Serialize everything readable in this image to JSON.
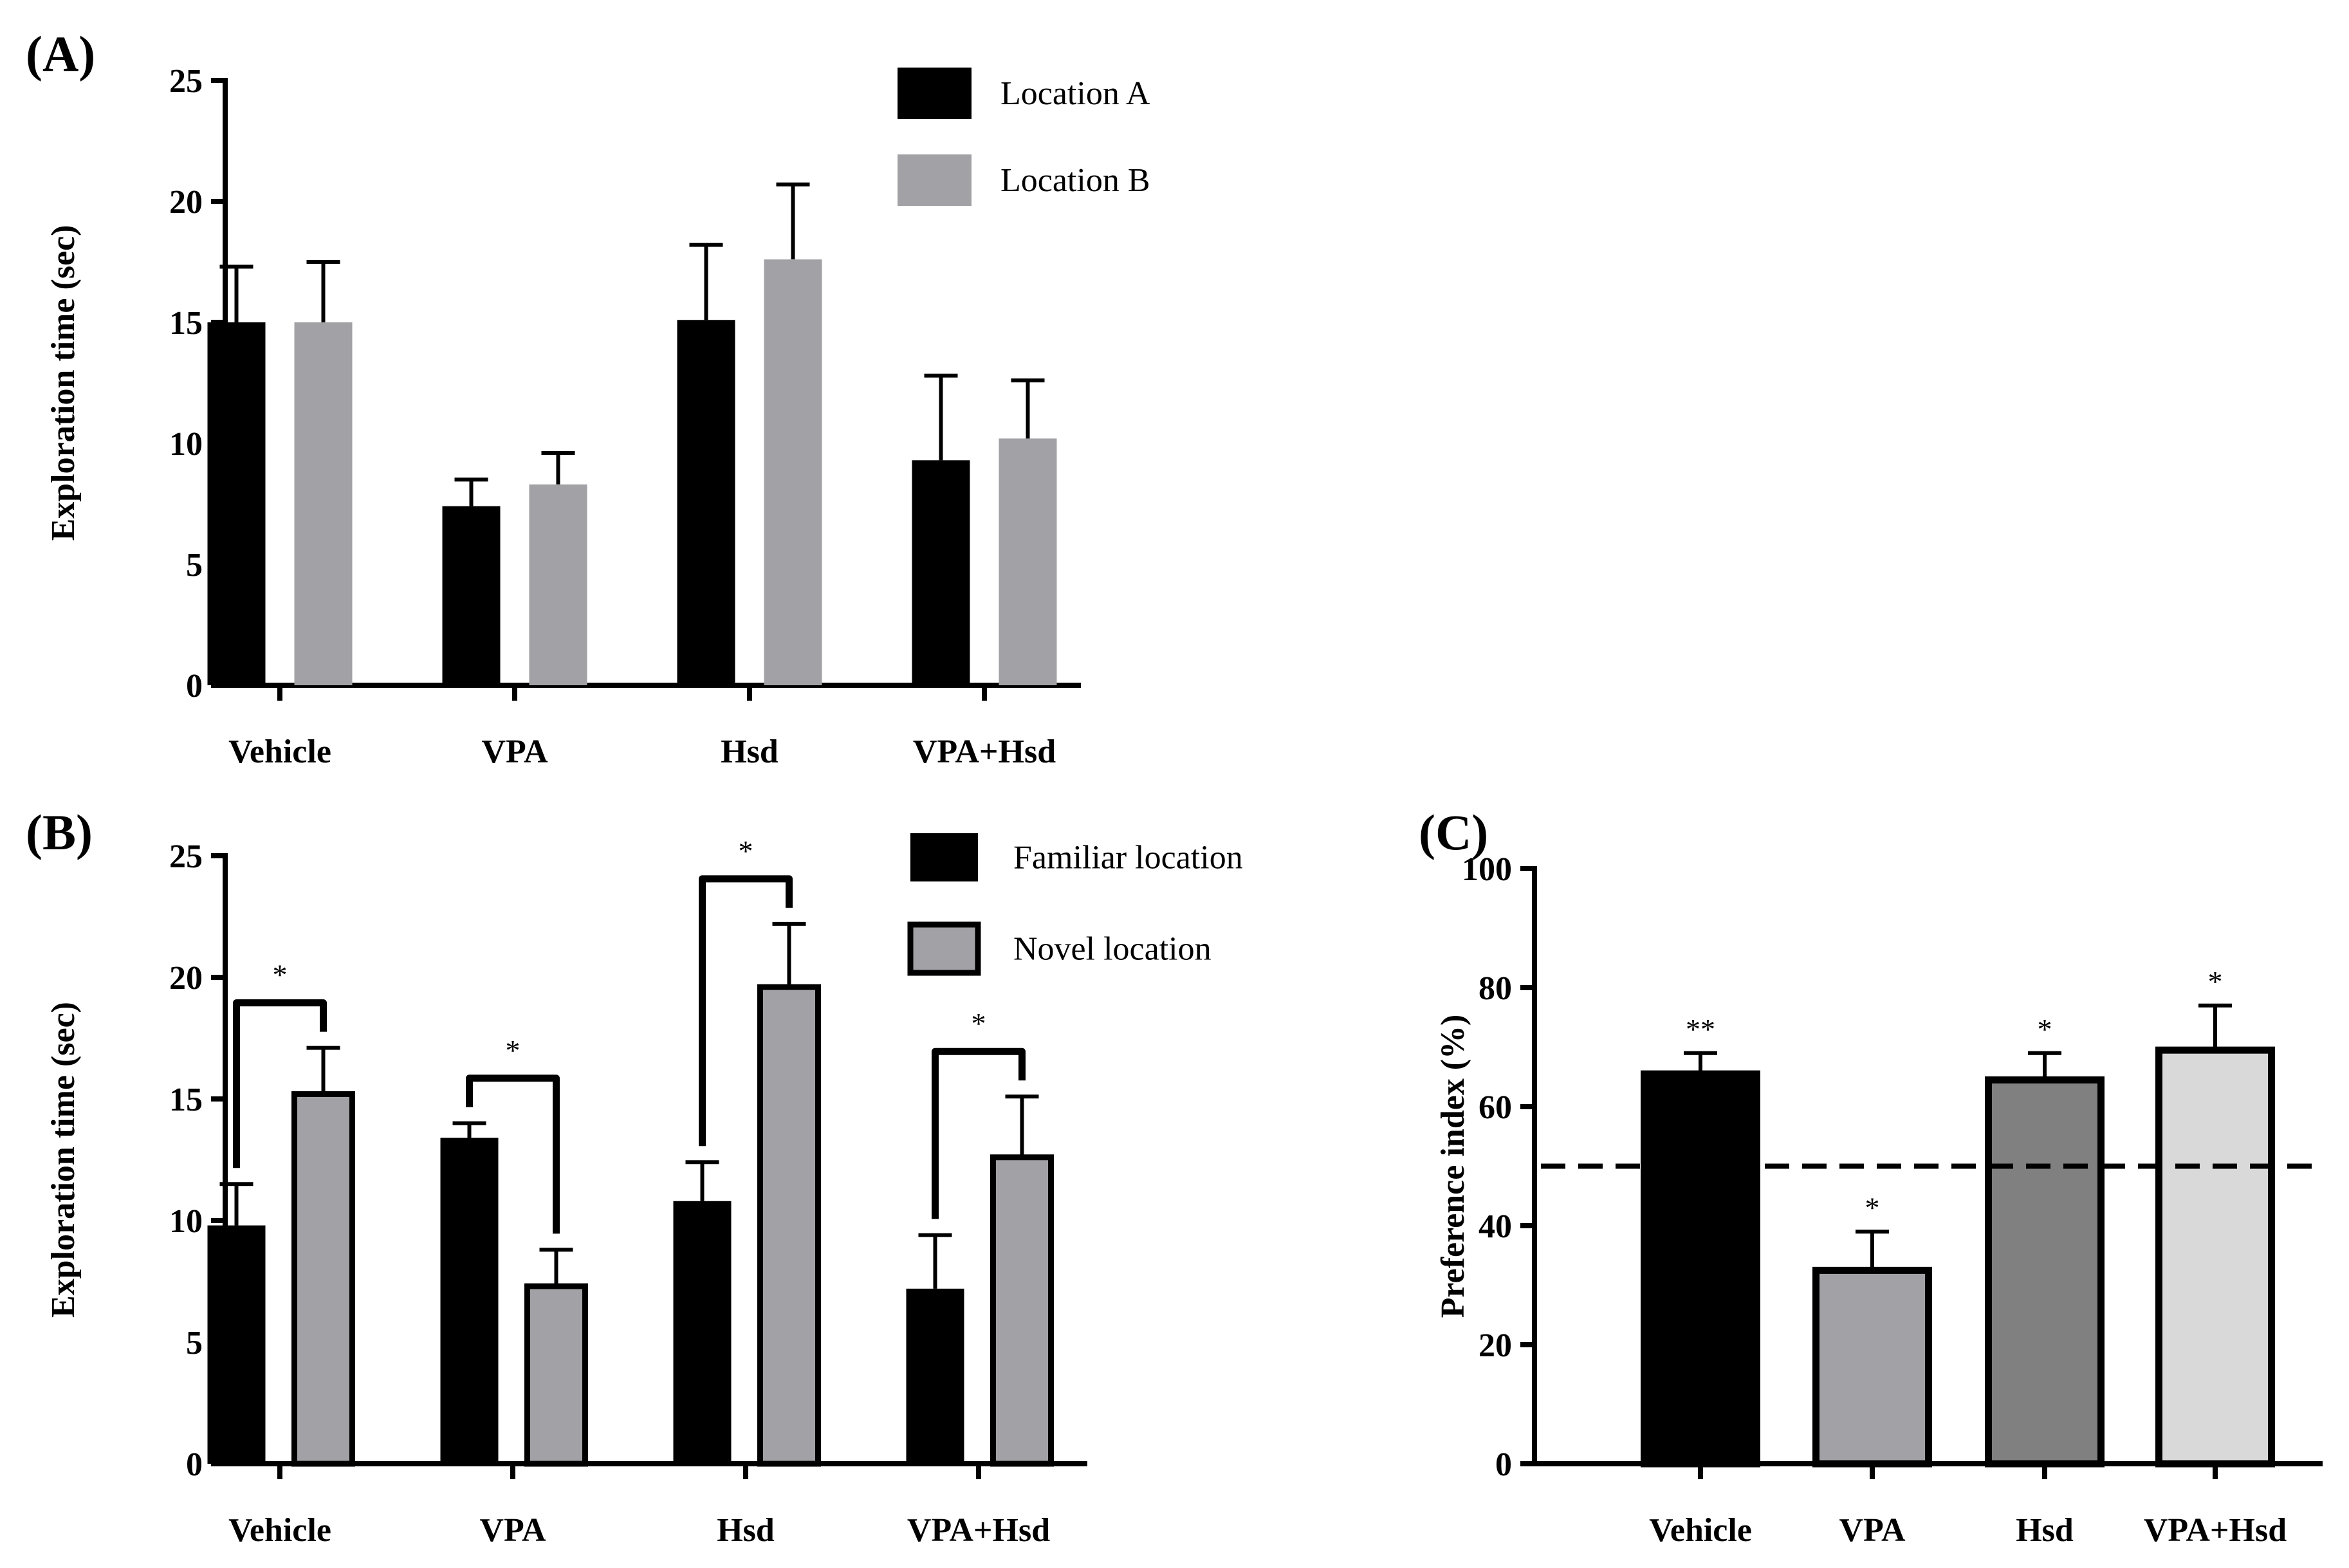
{
  "colors": {
    "black": "#000000",
    "gray": "#a2a2a6",
    "dark_gray": "#808080",
    "light_gray": "#d9d9d9"
  },
  "chart_data": [
    {
      "id": "A",
      "panel_label": "(A)",
      "type": "bar",
      "ylabel": "Exploration time (sec)",
      "ylim": [
        0,
        25
      ],
      "yticks": [
        "0",
        "5",
        "10",
        "15",
        "20",
        "25"
      ],
      "categories": [
        "Vehicle",
        "VPA",
        "Hsd",
        "VPA+Hsd"
      ],
      "series": [
        {
          "name": "Location A",
          "color": "#000000",
          "values": [
            15.0,
            7.4,
            15.1,
            9.3
          ],
          "errors": [
            2.3,
            1.1,
            3.1,
            3.5
          ]
        },
        {
          "name": "Location B",
          "color": "#a2a2a6",
          "values": [
            15.0,
            8.3,
            17.6,
            10.2
          ],
          "errors": [
            2.5,
            1.3,
            3.1,
            2.4
          ]
        }
      ],
      "legend_position": "top-right"
    },
    {
      "id": "B",
      "panel_label": "(B)",
      "type": "bar",
      "ylabel": "Exploration time (sec)",
      "ylim": [
        0,
        25
      ],
      "yticks": [
        "0",
        "5",
        "10",
        "15",
        "20",
        "25"
      ],
      "categories": [
        "Vehicle",
        "VPA",
        "Hsd",
        "VPA+Hsd"
      ],
      "series": [
        {
          "name": "Familiar location",
          "color": "#000000",
          "values": [
            9.8,
            13.4,
            10.8,
            7.2
          ],
          "errors": [
            1.7,
            0.6,
            1.6,
            2.2
          ]
        },
        {
          "name": "Novel location",
          "color": "#a2a2a6",
          "values": [
            15.2,
            7.3,
            19.6,
            12.6
          ],
          "errors": [
            1.9,
            1.5,
            2.6,
            2.5
          ]
        }
      ],
      "significance": [
        "*",
        "*",
        "*",
        "*"
      ],
      "legend_position": "top-right"
    },
    {
      "id": "C",
      "panel_label": "(C)",
      "type": "bar",
      "ylabel": "Preference index (%)",
      "ylim": [
        0,
        100
      ],
      "yticks": [
        "0",
        "20",
        "40",
        "60",
        "80",
        "100"
      ],
      "categories": [
        "Vehicle",
        "VPA",
        "Hsd",
        "VPA+Hsd"
      ],
      "values": [
        65.5,
        32.5,
        64.5,
        69.5
      ],
      "errors": [
        3.5,
        6.5,
        4.5,
        7.5
      ],
      "colors": [
        "#000000",
        "#a2a2a6",
        "#808080",
        "#d9d9d9"
      ],
      "significance": [
        "**",
        "*",
        "*",
        "*"
      ],
      "reference_line": 50
    }
  ]
}
